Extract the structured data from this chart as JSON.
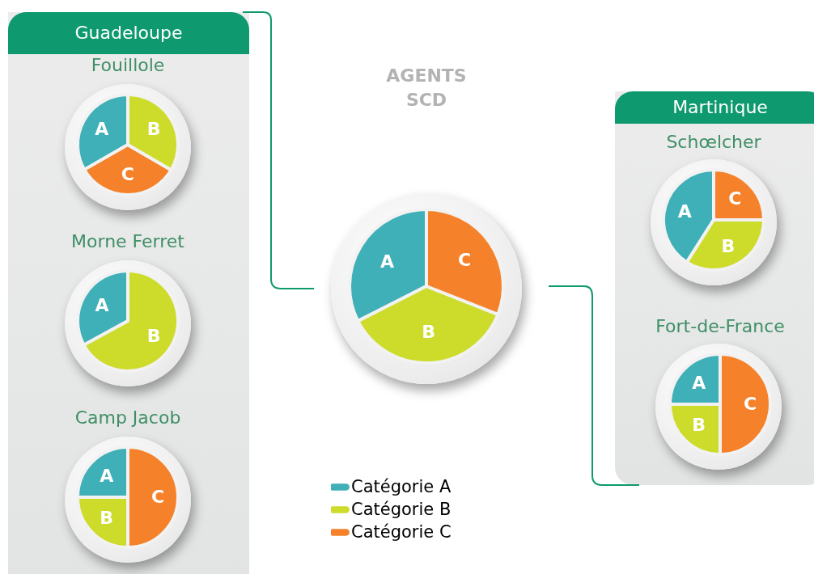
{
  "chart_data": [
    {
      "type": "pie",
      "title": "Fouillole",
      "annotations": [
        "Guadeloupe"
      ],
      "categories": [
        "A",
        "C",
        "B"
      ],
      "values": [
        33.3,
        33.3,
        33.4
      ],
      "colors": [
        "#3fb0b8",
        "#f5822a",
        "#cddb2a"
      ]
    },
    {
      "type": "pie",
      "title": "Morne Ferret",
      "categories": [
        "A",
        "B"
      ],
      "values": [
        33,
        67
      ],
      "colors": [
        "#3fb0b8",
        "#cddb2a"
      ]
    },
    {
      "type": "pie",
      "title": "Camp Jacob",
      "categories": [
        "A",
        "B",
        "C"
      ],
      "values": [
        25,
        25,
        50
      ],
      "colors": [
        "#3fb0b8",
        "#cddb2a",
        "#f5822a"
      ]
    },
    {
      "type": "pie",
      "title": "AGENTS\nSCD",
      "categories": [
        "Catégorie A",
        "Catégorie B",
        "Catégorie C"
      ],
      "values": [
        32.5,
        36.5,
        31
      ],
      "value_labels": [
        "A",
        "B",
        "C"
      ],
      "colors": [
        "#3fb0b8",
        "#cddb2a",
        "#f5822a"
      ],
      "legend": "bottom"
    },
    {
      "type": "pie",
      "title": "Schœlcher",
      "annotations": [
        "Martinique"
      ],
      "categories": [
        "A",
        "B",
        "C"
      ],
      "values": [
        41,
        34,
        25
      ],
      "colors": [
        "#3fb0b8",
        "#cddb2a",
        "#f5822a"
      ]
    },
    {
      "type": "pie",
      "title": "Fort-de-France",
      "categories": [
        "A",
        "B",
        "C"
      ],
      "values": [
        25,
        25,
        50
      ],
      "colors": [
        "#3fb0b8",
        "#cddb2a",
        "#f5822a"
      ]
    }
  ]
}
